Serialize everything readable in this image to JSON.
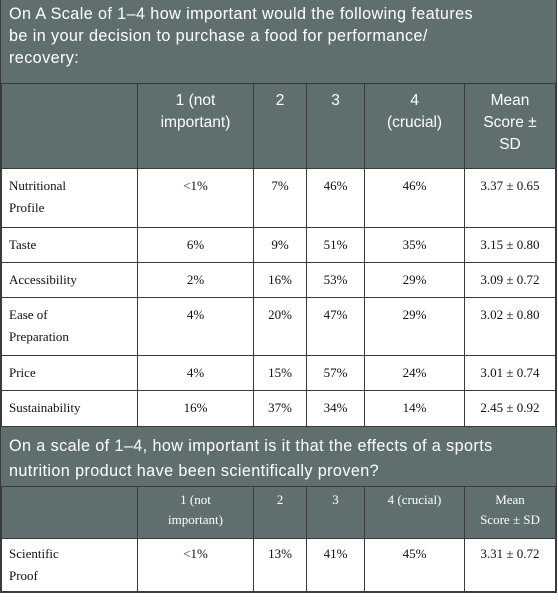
{
  "section1": {
    "question_lines": [
      "On A Scale of 1–4 how important would the following features",
      "be in your decision to purchase a food for performance/",
      "recovery:"
    ],
    "headers": [
      "",
      "1 (not important)",
      "2",
      "3",
      "4 (crucial)",
      "Mean Score ± SD"
    ],
    "header_lines": [
      [
        ""
      ],
      [
        "1 (not",
        "important)"
      ],
      [
        "2"
      ],
      [
        "3"
      ],
      [
        "4",
        "(crucial)"
      ],
      [
        "Mean",
        "Score ±",
        "SD"
      ]
    ],
    "rows": [
      {
        "feature_lines": [
          "Nutritional",
          "Profile"
        ],
        "c1": "<1%",
        "c2": "7%",
        "c3": "46%",
        "c4": "46%",
        "mean": "3.37 ± 0.65"
      },
      {
        "feature_lines": [
          "Taste"
        ],
        "c1": "6%",
        "c2": "9%",
        "c3": "51%",
        "c4": "35%",
        "mean": "3.15 ± 0.80"
      },
      {
        "feature_lines": [
          "Accessibility"
        ],
        "c1": "2%",
        "c2": "16%",
        "c3": "53%",
        "c4": "29%",
        "mean": "3.09 ± 0.72"
      },
      {
        "feature_lines": [
          "Ease of",
          "Preparation"
        ],
        "c1": "4%",
        "c2": "20%",
        "c3": "47%",
        "c4": "29%",
        "mean": "3.02 ± 0.80"
      },
      {
        "feature_lines": [
          "Price"
        ],
        "c1": "4%",
        "c2": "15%",
        "c3": "57%",
        "c4": "24%",
        "mean": "3.01 ± 0.74"
      },
      {
        "feature_lines": [
          "Sustainability"
        ],
        "c1": "16%",
        "c2": "37%",
        "c3": "34%",
        "c4": "14%",
        "mean": "2.45 ± 0.92"
      }
    ]
  },
  "section2": {
    "question_lines": [
      "On a scale of 1–4, how important is it that the effects of a sports",
      "nutrition product have been scientifically proven?"
    ],
    "header_lines": [
      [
        ""
      ],
      [
        "1 (not",
        "important)"
      ],
      [
        "2"
      ],
      [
        "3"
      ],
      [
        "4 (crucial)"
      ],
      [
        "Mean",
        "Score ± SD"
      ]
    ],
    "rows": [
      {
        "feature_lines": [
          "Scientific",
          "Proof"
        ],
        "c1": "<1%",
        "c2": "13%",
        "c3": "41%",
        "c4": "45%",
        "mean": "3.31 ± 0.72"
      }
    ]
  },
  "colors": {
    "header_bg": "#5f6f6f",
    "header_text": "#ffffff",
    "rule": "#3a3a3a"
  }
}
